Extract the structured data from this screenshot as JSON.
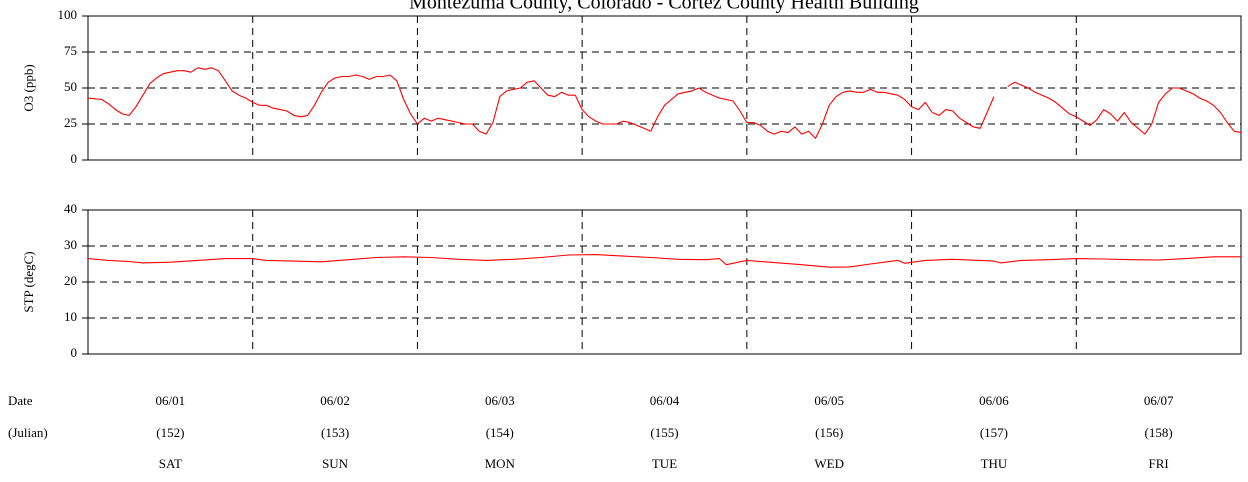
{
  "title": "Montezuma County, Colorado - Cortez County Health Building",
  "chart_data": [
    {
      "type": "line",
      "ylabel": "O3 (ppb)",
      "ylim": [
        0,
        100
      ],
      "yticks": [
        "0",
        "25",
        "50",
        "75",
        "100"
      ],
      "xlim": [
        0,
        168
      ],
      "grid": "dashed",
      "series": [
        {
          "color": "#ff0000",
          "segments": [
            [
              [
                0,
                43
              ],
              [
                1,
                42.5
              ],
              [
                2,
                42
              ],
              [
                3,
                39
              ],
              [
                4,
                35
              ],
              [
                5,
                32
              ],
              [
                6,
                31
              ],
              [
                7,
                37
              ],
              [
                8,
                45
              ],
              [
                9,
                53
              ],
              [
                10,
                57
              ],
              [
                11,
                60
              ],
              [
                12,
                61
              ],
              [
                13,
                62
              ],
              [
                14,
                62
              ],
              [
                15,
                61
              ],
              [
                16,
                64
              ],
              [
                17,
                63
              ],
              [
                18,
                64
              ],
              [
                19,
                62
              ],
              [
                20,
                55
              ],
              [
                21,
                48
              ],
              [
                22,
                45
              ],
              [
                23,
                43
              ],
              [
                24,
                40
              ],
              [
                25,
                38
              ],
              [
                26,
                38
              ],
              [
                27,
                36
              ],
              [
                28,
                35
              ],
              [
                29,
                34
              ],
              [
                30,
                31
              ],
              [
                31,
                30
              ],
              [
                32,
                31
              ],
              [
                33,
                38
              ],
              [
                34,
                47
              ],
              [
                35,
                54
              ],
              [
                36,
                57
              ],
              [
                37,
                58
              ],
              [
                38,
                58
              ],
              [
                39,
                59
              ],
              [
                40,
                58
              ],
              [
                41,
                56
              ],
              [
                42,
                58
              ],
              [
                43,
                58
              ],
              [
                44,
                59
              ],
              [
                45,
                55
              ],
              [
                46,
                42
              ],
              [
                47,
                32
              ],
              [
                48,
                25
              ],
              [
                49,
                29
              ],
              [
                50,
                27
              ],
              [
                51,
                29
              ],
              [
                52,
                28
              ],
              [
                53,
                27
              ],
              [
                54,
                26
              ],
              [
                55,
                25
              ],
              [
                56,
                25
              ],
              [
                57,
                20
              ],
              [
                58,
                18
              ],
              [
                59,
                26
              ],
              [
                60,
                44
              ],
              [
                61,
                48
              ],
              [
                62,
                49
              ],
              [
                63,
                50
              ],
              [
                64,
                54
              ],
              [
                65,
                55
              ],
              [
                66,
                50
              ],
              [
                67,
                45
              ],
              [
                68,
                44
              ],
              [
                69,
                47
              ],
              [
                70,
                45
              ],
              [
                71,
                45
              ],
              [
                72,
                35
              ],
              [
                73,
                30
              ],
              [
                74,
                27
              ],
              [
                75,
                25
              ],
              [
                76,
                25
              ],
              [
                77,
                25
              ],
              [
                78,
                27
              ],
              [
                79,
                26
              ],
              [
                80,
                24
              ],
              [
                81,
                22
              ],
              [
                82,
                20
              ],
              [
                83,
                30
              ],
              [
                84,
                38
              ],
              [
                85,
                42
              ],
              [
                86,
                46
              ],
              [
                87,
                47
              ],
              [
                88,
                48
              ],
              [
                89,
                50
              ],
              [
                90,
                47
              ],
              [
                91,
                45
              ],
              [
                92,
                43
              ],
              [
                93,
                42
              ],
              [
                94,
                41
              ],
              [
                95,
                34
              ],
              [
                96,
                26
              ],
              [
                97,
                26
              ],
              [
                98,
                24
              ],
              [
                99,
                20
              ],
              [
                100,
                18
              ],
              [
                101,
                20
              ],
              [
                102,
                19
              ],
              [
                103,
                23
              ],
              [
                104,
                18
              ],
              [
                105,
                20
              ],
              [
                106,
                15
              ],
              [
                107,
                25
              ],
              [
                108,
                38
              ],
              [
                109,
                44
              ],
              [
                110,
                47
              ],
              [
                111,
                48
              ],
              [
                112,
                47
              ],
              [
                113,
                47
              ],
              [
                114,
                49
              ],
              [
                115,
                47
              ],
              [
                116,
                47
              ],
              [
                117,
                46
              ],
              [
                118,
                45
              ],
              [
                119,
                42
              ],
              [
                120,
                37
              ],
              [
                121,
                35
              ],
              [
                122,
                40
              ],
              [
                123,
                33
              ],
              [
                124,
                31
              ],
              [
                125,
                35
              ],
              [
                126,
                34
              ],
              [
                127,
                29
              ],
              [
                128,
                26
              ],
              [
                129,
                23
              ],
              [
                130,
                22
              ],
              [
                131,
                33
              ],
              [
                132,
                44
              ]
            ],
            [
              [
                134,
                51
              ],
              [
                135,
                54
              ],
              [
                136,
                52
              ],
              [
                137,
                50
              ],
              [
                138,
                47
              ],
              [
                139,
                45
              ],
              [
                140,
                43
              ],
              [
                141,
                40
              ],
              [
                142,
                36
              ],
              [
                143,
                32
              ],
              [
                144,
                30
              ],
              [
                145,
                27
              ],
              [
                146,
                24
              ],
              [
                147,
                28
              ],
              [
                148,
                35
              ],
              [
                149,
                32
              ],
              [
                150,
                27
              ],
              [
                151,
                33
              ],
              [
                152,
                26
              ],
              [
                153,
                22
              ],
              [
                154,
                18
              ],
              [
                155,
                25
              ],
              [
                156,
                40
              ],
              [
                157,
                46
              ],
              [
                158,
                50
              ],
              [
                159,
                50
              ],
              [
                160,
                48
              ],
              [
                161,
                46
              ],
              [
                162,
                43
              ],
              [
                163,
                41
              ],
              [
                164,
                38
              ],
              [
                165,
                33
              ],
              [
                166,
                26
              ],
              [
                167,
                20
              ],
              [
                168,
                19
              ]
            ]
          ]
        }
      ]
    },
    {
      "type": "line",
      "ylabel": "STP (degC)",
      "ylim": [
        0,
        40
      ],
      "yticks": [
        "0",
        "10",
        "20",
        "30",
        "40"
      ],
      "xlim": [
        0,
        168
      ],
      "grid": "dashed",
      "series": [
        {
          "color": "#ff0000",
          "segments": [
            [
              [
                0,
                26.5
              ],
              [
                3,
                26
              ],
              [
                6,
                25.7
              ],
              [
                8,
                25.3
              ],
              [
                12,
                25.5
              ],
              [
                16,
                26
              ],
              [
                20,
                26.5
              ],
              [
                24,
                26.5
              ],
              [
                26,
                26
              ],
              [
                30,
                25.8
              ],
              [
                34,
                25.6
              ],
              [
                38,
                26.2
              ],
              [
                42,
                26.8
              ],
              [
                46,
                27
              ],
              [
                50,
                26.8
              ],
              [
                54,
                26.3
              ],
              [
                58,
                26
              ],
              [
                62,
                26.3
              ],
              [
                66,
                26.8
              ],
              [
                70,
                27.5
              ],
              [
                74,
                27.6
              ],
              [
                78,
                27.2
              ],
              [
                82,
                26.8
              ],
              [
                86,
                26.3
              ],
              [
                90,
                26.2
              ],
              [
                92,
                26.5
              ],
              [
                93,
                24.8
              ],
              [
                96,
                26
              ],
              [
                100,
                25.4
              ],
              [
                104,
                24.8
              ],
              [
                108,
                24.1
              ],
              [
                111,
                24.2
              ],
              [
                114,
                25
              ],
              [
                118,
                26
              ],
              [
                119,
                25.2
              ],
              [
                122,
                26
              ],
              [
                126,
                26.3
              ],
              [
                130,
                26
              ],
              [
                132,
                25.8
              ],
              [
                133,
                25.3
              ],
              [
                136,
                26
              ],
              [
                140,
                26.2
              ],
              [
                144,
                26.5
              ],
              [
                148,
                26.4
              ],
              [
                152,
                26.2
              ],
              [
                156,
                26.1
              ],
              [
                160,
                26.5
              ],
              [
                164,
                27
              ],
              [
                168,
                27
              ]
            ]
          ]
        }
      ]
    }
  ],
  "x_axis": {
    "row_labels": [
      "Date",
      "(Julian)"
    ],
    "days": [
      {
        "date": "06/01",
        "julian": "(152)",
        "weekday": "SAT"
      },
      {
        "date": "06/02",
        "julian": "(153)",
        "weekday": "SUN"
      },
      {
        "date": "06/03",
        "julian": "(154)",
        "weekday": "MON"
      },
      {
        "date": "06/04",
        "julian": "(155)",
        "weekday": "TUE"
      },
      {
        "date": "06/05",
        "julian": "(156)",
        "weekday": "WED"
      },
      {
        "date": "06/06",
        "julian": "(157)",
        "weekday": "THU"
      },
      {
        "date": "06/07",
        "julian": "(158)",
        "weekday": "FRI"
      }
    ]
  }
}
